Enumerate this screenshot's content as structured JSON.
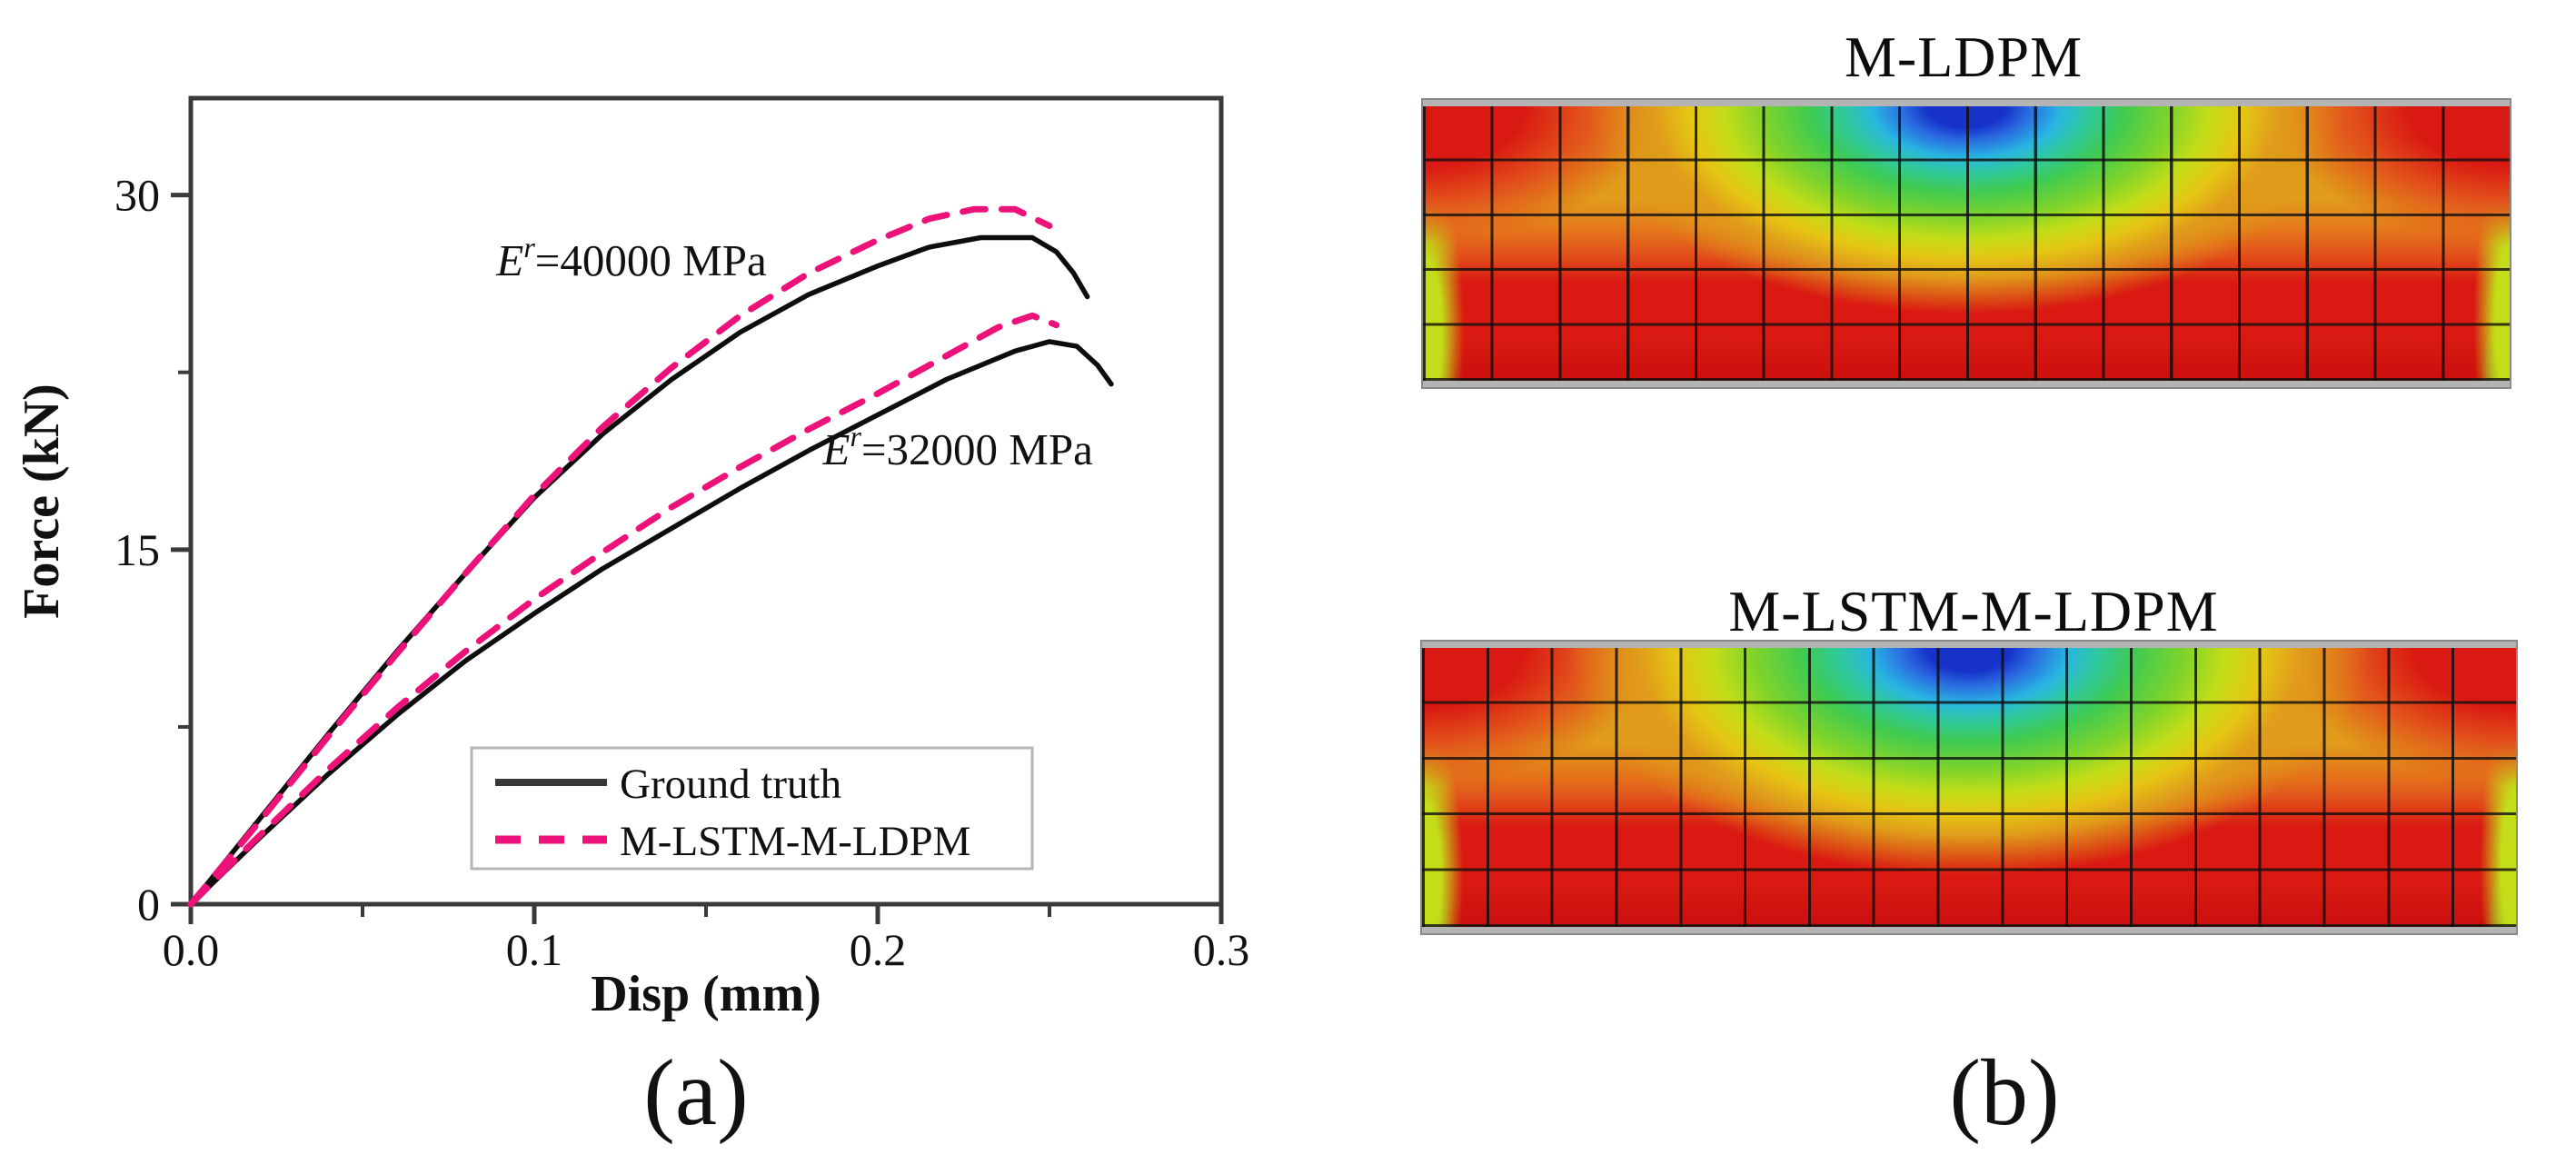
{
  "figure": {
    "panel_a_label": "(a)",
    "panel_b_label": "(b)"
  },
  "chart_data": {
    "type": "line",
    "title": "",
    "xlabel": "Disp (mm)",
    "ylabel": "Force (kN)",
    "xlim": [
      0.0,
      0.3
    ],
    "ylim": [
      0,
      34.1
    ],
    "grid": false,
    "x_major_ticks": [
      0.0,
      0.1,
      0.2,
      0.3
    ],
    "x_minor_ticks": [
      0.05,
      0.15,
      0.25
    ],
    "x_tick_labels": [
      "0.0",
      "0.1",
      "0.2",
      "0.3"
    ],
    "y_major_ticks": [
      0,
      15,
      30
    ],
    "y_minor_ticks": [
      7.5,
      22.5
    ],
    "y_tick_labels": [
      "0",
      "15",
      "30"
    ],
    "legend": {
      "position": "inside-bottom-center",
      "entries": [
        {
          "label": "Ground truth",
          "style": "solid",
          "color": "#383838"
        },
        {
          "label": "M-LSTM-M-LDPM",
          "style": "dashed",
          "color": "#ec1279"
        }
      ]
    },
    "annotations": [
      {
        "base": "E",
        "sup": "r",
        "rest": "=40000 MPa",
        "x": 0.089,
        "y": 26.6
      },
      {
        "base": "E",
        "sup": "r",
        "rest": "=32000 MPa",
        "x": 0.184,
        "y": 18.6
      }
    ],
    "series": [
      {
        "name": "Ground truth (Er=40000 MPa)",
        "color": "#0d0d0d",
        "style": "solid",
        "x": [
          0,
          0.02,
          0.04,
          0.06,
          0.08,
          0.1,
          0.12,
          0.14,
          0.16,
          0.18,
          0.2,
          0.215,
          0.23,
          0.245,
          0.252,
          0.257,
          0.261
        ],
        "y": [
          0,
          3.6,
          7.2,
          10.7,
          14.0,
          17.2,
          19.9,
          22.2,
          24.2,
          25.8,
          27.0,
          27.8,
          28.2,
          28.2,
          27.6,
          26.7,
          25.7
        ]
      },
      {
        "name": "M-LSTM-M-LDPM (Er=40000 MPa)",
        "color": "#ec1279",
        "style": "dashed",
        "x": [
          0,
          0.02,
          0.04,
          0.06,
          0.08,
          0.1,
          0.12,
          0.14,
          0.16,
          0.18,
          0.2,
          0.215,
          0.228,
          0.24,
          0.25
        ],
        "y": [
          0,
          3.5,
          7.1,
          10.6,
          14.0,
          17.3,
          20.2,
          22.7,
          24.9,
          26.7,
          28.1,
          29.0,
          29.4,
          29.4,
          28.7
        ]
      },
      {
        "name": "Ground truth (Er=32000 MPa)",
        "color": "#0d0d0d",
        "style": "solid",
        "x": [
          0,
          0.02,
          0.04,
          0.06,
          0.08,
          0.1,
          0.12,
          0.14,
          0.16,
          0.18,
          0.2,
          0.22,
          0.24,
          0.25,
          0.258,
          0.264,
          0.268
        ],
        "y": [
          0,
          2.8,
          5.5,
          8.0,
          10.3,
          12.3,
          14.2,
          15.9,
          17.6,
          19.2,
          20.7,
          22.2,
          23.4,
          23.8,
          23.6,
          22.8,
          22.0
        ]
      },
      {
        "name": "M-LSTM-M-LDPM (Er=32000 MPa)",
        "color": "#ec1279",
        "style": "dashed",
        "x": [
          0,
          0.02,
          0.04,
          0.06,
          0.08,
          0.1,
          0.12,
          0.14,
          0.16,
          0.18,
          0.2,
          0.22,
          0.235,
          0.245,
          0.252
        ],
        "y": [
          0,
          2.9,
          5.7,
          8.3,
          10.7,
          12.9,
          14.9,
          16.8,
          18.5,
          20.1,
          21.6,
          23.2,
          24.4,
          24.9,
          24.5
        ]
      }
    ]
  },
  "heatmaps": [
    {
      "title": "M-LDPM",
      "mesh_rows": 5,
      "mesh_cols": 16,
      "pattern": "contour field: blue low pocket at top center ringed by cyan/green/yellow, orange band mid-depth, red bottom, red top corners, yellow-green slivers on side edges",
      "bullseye": {
        "rx": 430,
        "ry": 235
      },
      "palette": [
        "#1632c9",
        "#2a6ae0",
        "#28b5e2",
        "#2fc9a0",
        "#3fcb52",
        "#7ed32b",
        "#c3dd18",
        "#e5c614",
        "#e09c1a",
        "#e4771a",
        "#e2511b",
        "#da1a12",
        "#cb0f0e"
      ]
    },
    {
      "title": "M-LSTM-M-LDPM",
      "mesh_rows": 5,
      "mesh_cols": 17,
      "pattern": "contour field: slightly deeper blue pocket at top center, same ring structure, red bottom, green sliver at lower right edge",
      "bullseye": {
        "rx": 455,
        "ry": 258
      },
      "palette": [
        "#1632c9",
        "#2a6ae0",
        "#28b5e2",
        "#2fc9a0",
        "#3fcb52",
        "#7ed32b",
        "#c3dd18",
        "#e5c614",
        "#e09c1a",
        "#e4771a",
        "#e2511b",
        "#da1a12",
        "#cb0f0e"
      ]
    }
  ]
}
